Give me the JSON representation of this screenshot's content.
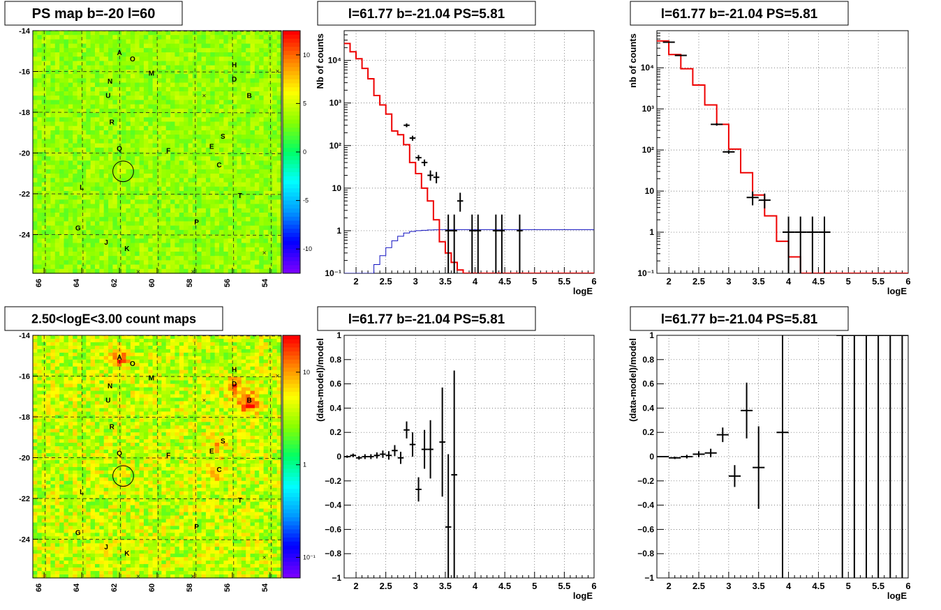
{
  "panels": {
    "ps_map": {
      "title": "PS map b=-20 l=60",
      "chart_data": {
        "type": "heatmap",
        "x_ticks": [
          "66",
          "64",
          "62",
          "60",
          "58",
          "56",
          "54"
        ],
        "y_ticks": [
          "-14",
          "-16",
          "-18",
          "-20",
          "-22",
          "-24"
        ],
        "xlim": [
          66.6,
          53.4
        ],
        "ylim": [
          -25.9,
          -14.0
        ],
        "z_ticks": [
          "10",
          "5",
          "0",
          "-5",
          "-10"
        ],
        "zlim": [
          -12.5,
          12.5
        ],
        "colormap": [
          "#ff0000",
          "#ff8800",
          "#ffff00",
          "#88ff00",
          "#00ff66",
          "#00ffff",
          "#0099ff",
          "#0000ff",
          "#7700ff"
        ],
        "sources": [
          {
            "name": "A",
            "l": 62.0,
            "b": -15.2
          },
          {
            "name": "O",
            "l": 61.3,
            "b": -15.5
          },
          {
            "name": "M",
            "l": 60.3,
            "b": -16.2
          },
          {
            "name": "H",
            "l": 55.9,
            "b": -15.8
          },
          {
            "name": "D",
            "l": 55.9,
            "b": -16.5
          },
          {
            "name": "B",
            "l": 55.1,
            "b": -17.3
          },
          {
            "name": "N",
            "l": 62.5,
            "b": -16.6
          },
          {
            "name": "U",
            "l": 62.6,
            "b": -17.3
          },
          {
            "name": "R",
            "l": 62.4,
            "b": -18.6
          },
          {
            "name": "S",
            "l": 56.5,
            "b": -19.3
          },
          {
            "name": "E",
            "l": 57.1,
            "b": -19.8
          },
          {
            "name": "F",
            "l": 59.4,
            "b": -20.0
          },
          {
            "name": "Q",
            "l": 62.0,
            "b": -19.9
          },
          {
            "name": "C",
            "l": 56.7,
            "b": -20.7
          },
          {
            "name": "L",
            "l": 64.0,
            "b": -21.8
          },
          {
            "name": "T",
            "l": 55.6,
            "b": -22.2
          },
          {
            "name": "P",
            "l": 57.9,
            "b": -23.5
          },
          {
            "name": "G",
            "l": 64.2,
            "b": -23.8
          },
          {
            "name": "J",
            "l": 62.7,
            "b": -24.5
          },
          {
            "name": "K",
            "l": 61.6,
            "b": -24.8
          }
        ],
        "crosses": [
          {
            "l": 57.5,
            "b": -17.2
          },
          {
            "l": 53.6,
            "b": -16.0
          },
          {
            "l": 54.3,
            "b": -24.9
          },
          {
            "l": 61.0,
            "b": -25.9
          },
          {
            "l": 58.1,
            "b": -25.9
          }
        ],
        "circle": {
          "l": 61.8,
          "b": -20.9,
          "r": 0.55
        }
      }
    },
    "count_map": {
      "title": "2.50<logE<3.00 count maps",
      "chart_data": {
        "type": "heatmap",
        "x_ticks": [
          "66",
          "64",
          "62",
          "60",
          "58",
          "56",
          "54"
        ],
        "y_ticks": [
          "-14",
          "-16",
          "-18",
          "-20",
          "-22",
          "-24"
        ],
        "xlim": [
          66.6,
          53.4
        ],
        "ylim": [
          -25.9,
          -14.0
        ],
        "z_ticks": [
          "10",
          "1",
          "10⁻¹"
        ],
        "z_log": true,
        "zlim": [
          0.06,
          25
        ],
        "colormap": [
          "#ff0000",
          "#ff8800",
          "#ffff00",
          "#88ff00",
          "#00ff66",
          "#00ffff",
          "#0099ff",
          "#0000ff",
          "#7700ff"
        ],
        "hot_spots": [
          {
            "l": 62.0,
            "b": -15.2,
            "strength": 0.55
          },
          {
            "l": 55.1,
            "b": -17.3,
            "strength": 1.0
          },
          {
            "l": 55.9,
            "b": -16.5,
            "strength": 0.6
          },
          {
            "l": 56.7,
            "b": -20.7,
            "strength": 0.4
          },
          {
            "l": 56.8,
            "b": -19.3,
            "strength": 0.35
          }
        ],
        "sources_ref": "same as PS map",
        "circle": {
          "l": 61.8,
          "b": -20.9,
          "r": 0.55
        }
      }
    },
    "spectrum1": {
      "title": "l=61.77 b=-21.04 PS=5.81",
      "chart_data": {
        "type": "line",
        "xlabel": "logE",
        "ylabel": "Nb of counts",
        "xlim": [
          1.8,
          6.0
        ],
        "ylim": [
          0.1,
          50000
        ],
        "y_log": true,
        "x_ticks": [
          "2",
          "2.5",
          "3",
          "3.5",
          "4",
          "4.5",
          "5",
          "5.5",
          "6"
        ],
        "y_ticks": [
          "10⁻¹",
          "1",
          "10",
          "10²",
          "10³",
          "10⁴"
        ],
        "bin_width": 0.1,
        "model": [
          25000,
          16000,
          11000,
          6500,
          3700,
          1500,
          900,
          550,
          220,
          180,
          105,
          40,
          22,
          10,
          5,
          1.8,
          0.55,
          0.3,
          0.18,
          0.12,
          0.1,
          0.1,
          0.1,
          0.1,
          0.1,
          0.1,
          0.1,
          0.1,
          0.1,
          0.1,
          0.1,
          0.1,
          0.1,
          0.1,
          0.1,
          0.1,
          0.1,
          0.1,
          0.1,
          0.1,
          0.1,
          0.1
        ],
        "background": [
          0.02,
          0.03,
          0.04,
          0.06,
          0.1,
          0.16,
          0.26,
          0.4,
          0.58,
          0.74,
          0.88,
          0.96,
          1.0,
          1.02,
          1.04,
          1.05,
          1.06,
          1.06,
          1.06,
          1.06,
          1.06,
          1.06,
          1.06,
          1.06,
          1.06,
          1.06,
          1.06,
          1.06,
          1.06,
          1.06,
          1.06,
          1.06,
          1.06,
          1.06,
          1.06,
          1.06,
          1.06,
          1.06,
          1.06,
          1.06,
          1.06,
          1.06
        ],
        "data_points": [
          {
            "x": 2.85,
            "y": 300,
            "lo": 270,
            "hi": 330
          },
          {
            "x": 2.95,
            "y": 150,
            "lo": 130,
            "hi": 170
          },
          {
            "x": 3.05,
            "y": 52,
            "lo": 44,
            "hi": 60
          },
          {
            "x": 3.15,
            "y": 40,
            "lo": 33,
            "hi": 47
          },
          {
            "x": 3.25,
            "y": 20,
            "lo": 15,
            "hi": 26
          },
          {
            "x": 3.35,
            "y": 18,
            "lo": 13,
            "hi": 24
          },
          {
            "x": 3.55,
            "y": 1.0,
            "lo": 0.1,
            "hi": 2.4
          },
          {
            "x": 3.65,
            "y": 1.0,
            "lo": 0.1,
            "hi": 2.4
          },
          {
            "x": 3.75,
            "y": 5,
            "lo": 2.8,
            "hi": 7.8
          },
          {
            "x": 3.95,
            "y": 1.0,
            "lo": 0.1,
            "hi": 2.4
          },
          {
            "x": 4.05,
            "y": 1.0,
            "lo": 0.1,
            "hi": 2.4
          },
          {
            "x": 4.35,
            "y": 1.0,
            "lo": 0.1,
            "hi": 2.4
          },
          {
            "x": 4.45,
            "y": 1.0,
            "lo": 0.1,
            "hi": 2.4
          },
          {
            "x": 4.75,
            "y": 1.0,
            "lo": 0.1,
            "hi": 2.4
          }
        ]
      }
    },
    "spectrum2": {
      "title": "l=61.77 b=-21.04 PS=5.81",
      "chart_data": {
        "type": "line",
        "xlabel": "logE",
        "ylabel": "nb of counts",
        "xlim": [
          1.8,
          6.0
        ],
        "ylim": [
          0.1,
          80000
        ],
        "y_log": true,
        "x_ticks": [
          "2",
          "2.5",
          "3",
          "3.5",
          "4",
          "4.5",
          "5",
          "5.5",
          "6"
        ],
        "y_ticks": [
          "10⁻¹",
          "1",
          "10",
          "10²",
          "10³",
          "10⁴"
        ],
        "bin_width": 0.2,
        "model": [
          45000,
          21000,
          9500,
          3800,
          1250,
          420,
          105,
          28,
          8,
          2.5,
          0.6,
          0.25,
          0.1,
          0.1,
          0.1,
          0.1,
          0.1,
          0.1,
          0.1,
          0.1,
          0.1
        ],
        "data_points": [
          {
            "x": 2.0,
            "y": 42000,
            "lo": 41000,
            "hi": 43000
          },
          {
            "x": 2.2,
            "y": 20000,
            "lo": 19500,
            "hi": 20500
          },
          {
            "x": 2.8,
            "y": 420,
            "lo": 390,
            "hi": 450
          },
          {
            "x": 3.0,
            "y": 90,
            "lo": 81,
            "hi": 99
          },
          {
            "x": 3.4,
            "y": 7,
            "lo": 4.5,
            "hi": 9.8
          },
          {
            "x": 3.6,
            "y": 6,
            "lo": 3.8,
            "hi": 8.7
          },
          {
            "x": 4.0,
            "y": 1.0,
            "lo": 0.1,
            "hi": 2.4
          },
          {
            "x": 4.2,
            "y": 1.0,
            "lo": 0.1,
            "hi": 2.4
          },
          {
            "x": 4.4,
            "y": 1.0,
            "lo": 0.1,
            "hi": 2.4
          },
          {
            "x": 4.6,
            "y": 1.0,
            "lo": 0.1,
            "hi": 2.4
          }
        ]
      }
    },
    "residual1": {
      "title": "l=61.77 b=-21.04 PS=5.81",
      "chart_data": {
        "type": "scatter",
        "xlabel": "logE",
        "ylabel": "(data-model)/model",
        "xlim": [
          1.8,
          6.0
        ],
        "ylim": [
          -1,
          1
        ],
        "x_ticks": [
          "2",
          "2.5",
          "3",
          "3.5",
          "4",
          "4.5",
          "5",
          "5.5",
          "6"
        ],
        "y_ticks": [
          "1",
          "0.8",
          "0.6",
          "0.4",
          "0.2",
          "0",
          "−0.2",
          "−0.4",
          "−0.6",
          "−0.8",
          "−1"
        ],
        "bin_width": 0.1,
        "points": [
          {
            "x": 1.85,
            "y": 0.0,
            "err": 0.01
          },
          {
            "x": 1.95,
            "y": 0.01,
            "err": 0.015
          },
          {
            "x": 2.05,
            "y": -0.01,
            "err": 0.015
          },
          {
            "x": 2.15,
            "y": 0.0,
            "err": 0.02
          },
          {
            "x": 2.25,
            "y": 0.0,
            "err": 0.02
          },
          {
            "x": 2.35,
            "y": 0.01,
            "err": 0.025
          },
          {
            "x": 2.45,
            "y": 0.02,
            "err": 0.03
          },
          {
            "x": 2.55,
            "y": 0.01,
            "err": 0.035
          },
          {
            "x": 2.65,
            "y": 0.05,
            "err": 0.045
          },
          {
            "x": 2.75,
            "y": -0.01,
            "err": 0.05
          },
          {
            "x": 2.85,
            "y": 0.22,
            "err": 0.07
          },
          {
            "x": 2.95,
            "y": 0.1,
            "err": 0.1
          },
          {
            "x": 3.05,
            "y": -0.27,
            "err": 0.1
          },
          {
            "x": 3.15,
            "y": 0.06,
            "err": 0.16
          },
          {
            "x": 3.25,
            "y": 0.06,
            "err": 0.24
          },
          {
            "x": 3.45,
            "y": 0.12,
            "err": 0.45
          },
          {
            "x": 3.55,
            "y": -0.58,
            "err": 0.6
          },
          {
            "x": 3.65,
            "y": -0.15,
            "err": 0.86
          }
        ]
      }
    },
    "residual2": {
      "title": "l=61.77 b=-21.04 PS=5.81",
      "chart_data": {
        "type": "scatter",
        "xlabel": "logE",
        "ylabel": "(data-model)/model",
        "xlim": [
          1.8,
          6.0
        ],
        "ylim": [
          -1,
          1
        ],
        "x_ticks": [
          "2",
          "2.5",
          "3",
          "3.5",
          "4",
          "4.5",
          "5",
          "5.5",
          "6"
        ],
        "y_ticks": [
          "1",
          "0.8",
          "0.6",
          "0.4",
          "0.2",
          "0",
          "−0.2",
          "−0.4",
          "−0.6",
          "−0.8",
          "−1"
        ],
        "bin_width": 0.2,
        "points": [
          {
            "x": 1.9,
            "y": 0.0,
            "err": 0.005
          },
          {
            "x": 2.1,
            "y": -0.01,
            "err": 0.01
          },
          {
            "x": 2.3,
            "y": 0.0,
            "err": 0.015
          },
          {
            "x": 2.5,
            "y": 0.02,
            "err": 0.025
          },
          {
            "x": 2.7,
            "y": 0.03,
            "err": 0.035
          },
          {
            "x": 2.9,
            "y": 0.18,
            "err": 0.06
          },
          {
            "x": 3.1,
            "y": -0.16,
            "err": 0.09
          },
          {
            "x": 3.3,
            "y": 0.38,
            "err": 0.23
          },
          {
            "x": 3.5,
            "y": -0.09,
            "err": 0.34
          },
          {
            "x": 3.9,
            "y": 0.2,
            "err": 1.5
          },
          {
            "x": 4.9,
            "y": 1.0,
            "err": 2.0
          },
          {
            "x": 5.1,
            "y": 1.0,
            "err": 2.0
          },
          {
            "x": 5.3,
            "y": 1.0,
            "err": 2.0
          },
          {
            "x": 5.5,
            "y": 1.0,
            "err": 2.0
          },
          {
            "x": 5.7,
            "y": 1.0,
            "err": 2.0
          },
          {
            "x": 5.9,
            "y": 1.0,
            "err": 2.0
          }
        ]
      }
    }
  }
}
